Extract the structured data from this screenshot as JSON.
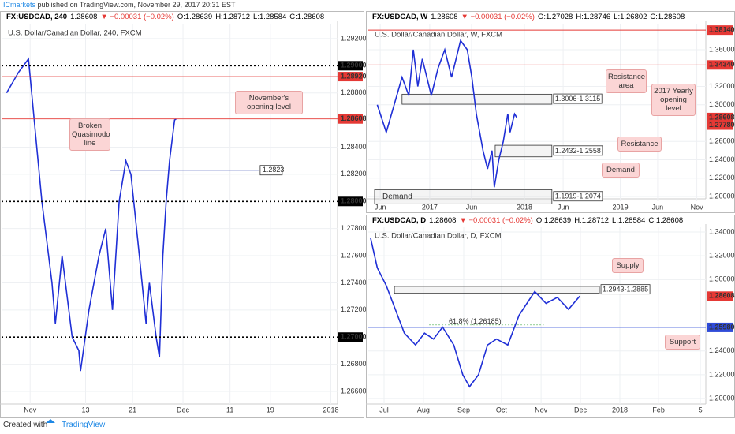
{
  "header": {
    "publisher": "ICmarkets",
    "published": "published on TradingView.com, November 29, 2017 20:31 EST"
  },
  "footer": {
    "created": "Created with",
    "brand": "TradingView"
  },
  "chart_data": [
    {
      "type": "line",
      "symbol": "FX:USDCAD, 240",
      "last": "1.28608",
      "change": "▼ −0.00031 (−0.02%)",
      "open": "O:1.28639",
      "high": "H:1.28712",
      "low": "L:1.28584",
      "close": "C:1.28608",
      "subtitle": "U.S. Dollar/Canadian Dollar, 240, FXCM",
      "grid": true,
      "xlim": [
        0,
        100
      ],
      "xticks": [
        {
          "value": 8.5,
          "label": "Nov"
        },
        {
          "value": 25,
          "label": "13"
        },
        {
          "value": 39,
          "label": "21"
        },
        {
          "value": 54,
          "label": "Dec"
        },
        {
          "value": 68,
          "label": "11"
        },
        {
          "value": 80,
          "label": "19"
        },
        {
          "value": 98,
          "label": "2018"
        }
      ],
      "ylim": [
        1.26507,
        1.2931
      ],
      "yticks": [
        {
          "value": 1.292,
          "label": "1.29200"
        },
        {
          "value": 1.288,
          "label": "1.28800"
        },
        {
          "value": 1.284,
          "label": "1.28400"
        },
        {
          "value": 1.282,
          "label": "1.28200"
        },
        {
          "value": 1.278,
          "label": "1.27800"
        },
        {
          "value": 1.276,
          "label": "1.27600"
        },
        {
          "value": 1.274,
          "label": "1.27400"
        },
        {
          "value": 1.272,
          "label": "1.27200"
        },
        {
          "value": 1.268,
          "label": "1.26800"
        },
        {
          "value": 1.266,
          "label": "1.26600"
        }
      ],
      "series": [
        {
          "color": "#1f2fd6",
          "x": [
            1.5,
            5,
            8,
            12,
            15,
            16,
            18,
            21,
            23,
            23.5,
            26,
            29,
            31,
            33,
            35,
            37,
            38.5,
            41,
            43,
            44,
            46,
            47,
            48,
            49,
            50,
            51.5,
            52
          ],
          "values": [
            1.288,
            1.2895,
            1.2905,
            1.28,
            1.274,
            1.271,
            1.276,
            1.27,
            1.269,
            1.2675,
            1.272,
            1.276,
            1.278,
            1.272,
            1.28,
            1.283,
            1.282,
            1.276,
            1.271,
            1.274,
            1.27,
            1.2685,
            1.276,
            1.28,
            1.283,
            1.286,
            1.28608
          ]
        }
      ],
      "levels": [
        {
          "value": 1.29,
          "label": "1.29000",
          "color": "#000000",
          "style": "dotted"
        },
        {
          "value": 1.2892,
          "label": "1.28920",
          "color": "#e53935",
          "style": "solid"
        },
        {
          "value": 1.28608,
          "label": "1.28608",
          "color": "#e53935",
          "style": "solid"
        },
        {
          "value": 1.28,
          "label": "1.28000",
          "color": "#000000",
          "style": "dotted"
        },
        {
          "value": 1.27,
          "label": "1.27000",
          "color": "#000000",
          "style": "dotted"
        }
      ],
      "segments": [
        {
          "value": 1.2823,
          "label": "1.2823",
          "color": "#3f51b5",
          "x": [
            32.4,
            76.5
          ]
        }
      ],
      "zones": [],
      "annotations": [
        "November's opening level",
        "Broken Quasimodo line"
      ]
    },
    {
      "type": "line",
      "symbol": "FX:USDCAD, W",
      "last": "1.28608",
      "change": "▼ −0.00031 (−0.02%)",
      "open": "O:1.27028",
      "high": "H:1.28746",
      "low": "L:1.26802",
      "close": "C:1.28608",
      "subtitle": "U.S. Dollar/Canadian Dollar, W, FXCM",
      "grid": true,
      "xlim": [
        0,
        150
      ],
      "xticks": [
        {
          "value": 5.3,
          "label": "Jun"
        },
        {
          "value": 27.3,
          "label": "2017"
        },
        {
          "value": 45.9,
          "label": "Jun"
        },
        {
          "value": 69.4,
          "label": "2018"
        },
        {
          "value": 86.6,
          "label": "Jun"
        },
        {
          "value": 112,
          "label": "2019"
        },
        {
          "value": 128.6,
          "label": "Jun"
        },
        {
          "value": 146,
          "label": "Nov"
        }
      ],
      "ylim": [
        1.1948,
        1.3884
      ],
      "yticks": [
        {
          "value": 1.36,
          "label": "1.36000"
        },
        {
          "value": 1.32,
          "label": "1.32000"
        },
        {
          "value": 1.3,
          "label": "1.30000"
        },
        {
          "value": 1.26,
          "label": "1.26000"
        },
        {
          "value": 1.24,
          "label": "1.24000"
        },
        {
          "value": 1.22,
          "label": "1.22000"
        },
        {
          "value": 1.2,
          "label": "1.20000"
        }
      ],
      "series": [
        {
          "color": "#1f2fd6",
          "x": [
            4,
            8,
            15,
            18,
            20,
            22,
            24,
            28,
            31,
            34,
            37,
            41,
            44,
            46,
            48,
            51,
            53,
            55,
            56,
            58,
            60,
            62,
            63,
            64,
            65,
            66
          ],
          "values": [
            1.3,
            1.27,
            1.33,
            1.31,
            1.36,
            1.32,
            1.35,
            1.31,
            1.34,
            1.36,
            1.33,
            1.37,
            1.36,
            1.33,
            1.29,
            1.25,
            1.23,
            1.25,
            1.21,
            1.24,
            1.26,
            1.29,
            1.27,
            1.28,
            1.29,
            1.28608
          ]
        }
      ],
      "levels": [
        {
          "value": 1.3814,
          "label": "1.38140",
          "color": "#e53935",
          "style": "solid"
        },
        {
          "value": 1.3434,
          "label": "1.34340",
          "color": "#e53935",
          "style": "solid"
        },
        {
          "value": 1.28608,
          "label": "1.28608",
          "color": "#e53935",
          "style": "none"
        },
        {
          "value": 1.2778,
          "label": "1.27780",
          "color": "#e53935",
          "style": "solid"
        }
      ],
      "segments": [],
      "zones": [
        {
          "low": 1.3006,
          "high": 1.3115,
          "label": "1.3006-1.3115",
          "x": [
            15,
            81.6
          ]
        },
        {
          "low": 1.2432,
          "high": 1.2558,
          "label": "1.2432-1.2558",
          "x": [
            56.4,
            81.6
          ]
        },
        {
          "low": 1.1919,
          "high": 1.2074,
          "label": "1.1919-1.2074",
          "title": "Demand",
          "x": [
            2.8,
            81.6
          ]
        }
      ],
      "annotations": [
        "Resistance area",
        "2017 Yearly opening level",
        "Resistance",
        "Demand"
      ]
    },
    {
      "type": "line",
      "symbol": "FX:USDCAD, D",
      "last": "1.28608",
      "change": "▼ −0.00031 (−0.02%)",
      "open": "O:1.28639",
      "high": "H:1.28712",
      "low": "L:1.28584",
      "close": "C:1.28608",
      "subtitle": "U.S. Dollar/Canadian Dollar, D, FXCM",
      "grid": true,
      "xlim": [
        0,
        150
      ],
      "xticks": [
        {
          "value": 7,
          "label": "Jul"
        },
        {
          "value": 24.5,
          "label": "Aug"
        },
        {
          "value": 42.4,
          "label": "Sep"
        },
        {
          "value": 59.2,
          "label": "Oct"
        },
        {
          "value": 76.8,
          "label": "Nov"
        },
        {
          "value": 94.3,
          "label": "Dec"
        },
        {
          "value": 111.8,
          "label": "2018"
        },
        {
          "value": 129,
          "label": "Feb"
        },
        {
          "value": 147.6,
          "label": "5"
        }
      ],
      "ylim": [
        1.1954,
        1.344
      ],
      "yticks": [
        {
          "value": 1.34,
          "label": "1.34000"
        },
        {
          "value": 1.32,
          "label": "1.32000"
        },
        {
          "value": 1.3,
          "label": "1.30000"
        },
        {
          "value": 1.24,
          "label": "1.24000"
        },
        {
          "value": 1.22,
          "label": "1.22000"
        },
        {
          "value": 1.2,
          "label": "1.20000"
        }
      ],
      "series": [
        {
          "color": "#1f2fd6",
          "x": [
            1,
            4,
            8,
            11,
            16,
            21,
            25,
            29,
            33,
            38,
            42,
            45,
            49,
            53,
            57,
            62,
            67,
            74,
            79,
            84,
            89,
            94
          ],
          "values": [
            1.335,
            1.31,
            1.295,
            1.28,
            1.255,
            1.245,
            1.255,
            1.25,
            1.26,
            1.245,
            1.22,
            1.21,
            1.22,
            1.245,
            1.25,
            1.245,
            1.27,
            1.29,
            1.28,
            1.285,
            1.275,
            1.28608
          ]
        }
      ],
      "levels": [
        {
          "value": 1.28608,
          "label": "1.28608",
          "color": "#e53935",
          "style": "none"
        },
        {
          "value": 1.2598,
          "label": "1.25980",
          "color": "#2f4bd8",
          "style": "solid"
        }
      ],
      "segments": [],
      "fib": {
        "value": 1.26185,
        "label": "61.8% (1.26185)",
        "x": [
          27,
          78
        ]
      },
      "zones": [
        {
          "low": 1.2885,
          "high": 1.2943,
          "label": "1.2943-1.2885",
          "x": [
            11.6,
            102.7
          ]
        }
      ],
      "annotations": [
        "Supply",
        "Support"
      ]
    }
  ]
}
